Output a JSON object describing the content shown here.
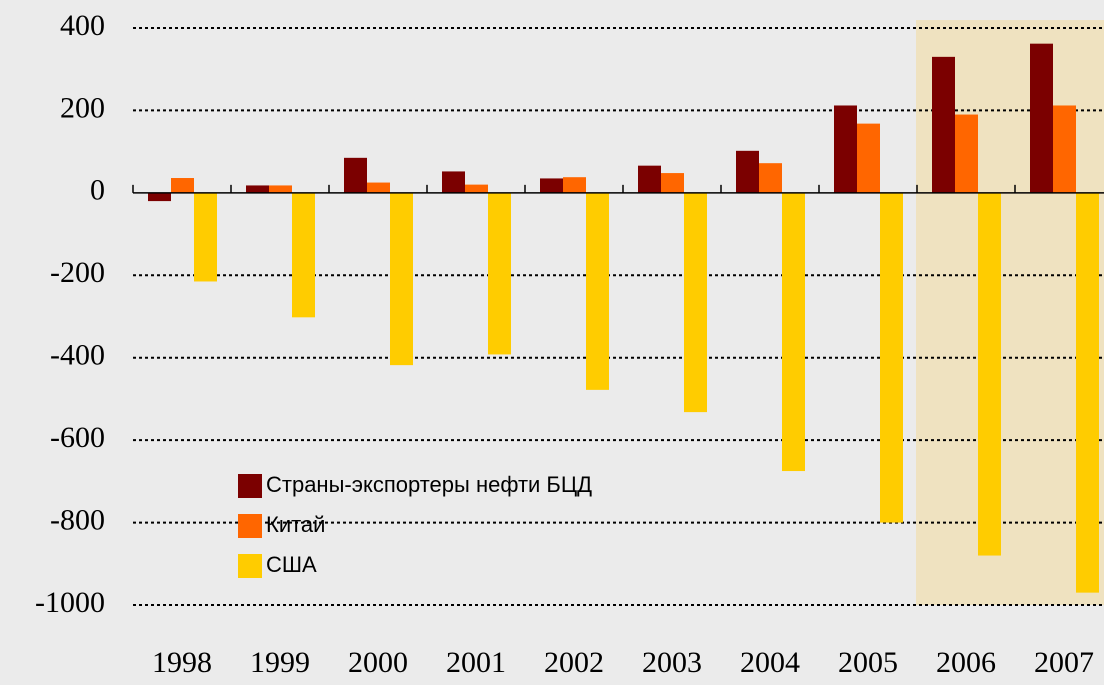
{
  "chart_data": {
    "type": "bar",
    "categories": [
      "1998",
      "1999",
      "2000",
      "2001",
      "2002",
      "2003",
      "2004",
      "2005",
      "2006",
      "2007"
    ],
    "series": [
      {
        "name": "Страны-экспортеры нефти БЦД",
        "color": "#7b0000",
        "values": [
          -20,
          18,
          85,
          52,
          35,
          66,
          102,
          212,
          330,
          362
        ]
      },
      {
        "name": "Китай",
        "color": "#ff6600",
        "values": [
          36,
          18,
          25,
          20,
          38,
          48,
          72,
          168,
          190,
          212
        ]
      },
      {
        "name": "США",
        "color": "#ffcc00",
        "values": [
          -215,
          -302,
          -418,
          -392,
          -478,
          -532,
          -675,
          -800,
          -880,
          -970
        ]
      }
    ],
    "ylim": [
      -1000,
      400
    ],
    "yticks": [
      -1000,
      -800,
      -600,
      -400,
      -200,
      0,
      200,
      400
    ],
    "grid": true
  }
}
